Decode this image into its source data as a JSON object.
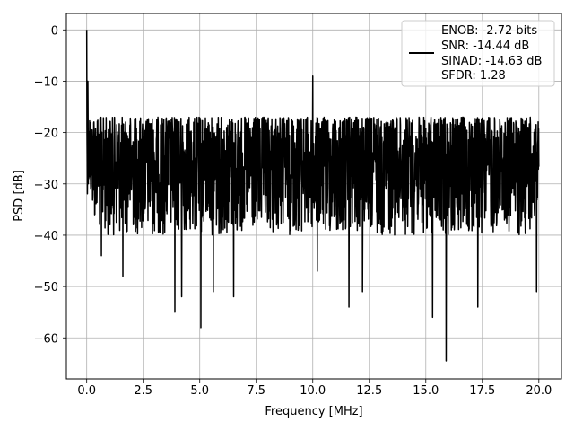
{
  "chart_data": {
    "type": "line",
    "title": "",
    "xlabel": "Frequency [MHz]",
    "ylabel": "PSD [dB]",
    "xlim": [
      -0.9,
      21.0
    ],
    "ylim": [
      -68,
      3.2
    ],
    "xticks": [
      0.0,
      2.5,
      5.0,
      7.5,
      10.0,
      12.5,
      15.0,
      17.5,
      20.0
    ],
    "xtick_labels": [
      "0.0",
      "2.5",
      "5.0",
      "7.5",
      "10.0",
      "12.5",
      "15.0",
      "17.5",
      "20.0"
    ],
    "yticks": [
      0,
      -10,
      -20,
      -30,
      -40,
      -50,
      -60
    ],
    "ytick_labels": [
      "0",
      "−10",
      "−20",
      "−30",
      "−40",
      "−50",
      "−60"
    ],
    "grid": true,
    "legend": {
      "placement": "top-right",
      "lines": [
        "ENOB: -2.72 bits",
        "SNR: -14.44 dB",
        "SINAD: -14.63 dB",
        "SFDR: 1.28"
      ]
    },
    "series": [
      {
        "color": "#000000",
        "noise_floor_db": [
          -40,
          -17
        ],
        "peaks": [
          {
            "x": 0.0,
            "y": 0.0
          },
          {
            "x": 0.05,
            "y": -10
          },
          {
            "x": 10.0,
            "y": -9
          },
          {
            "x": 0.2,
            "y": -21
          },
          {
            "x": 0.35,
            "y": -36
          },
          {
            "x": 0.65,
            "y": -44
          },
          {
            "x": 1.6,
            "y": -48
          },
          {
            "x": 3.9,
            "y": -55
          },
          {
            "x": 4.2,
            "y": -52
          },
          {
            "x": 5.05,
            "y": -58
          },
          {
            "x": 5.6,
            "y": -51
          },
          {
            "x": 6.5,
            "y": -52
          },
          {
            "x": 10.2,
            "y": -47
          },
          {
            "x": 11.6,
            "y": -54
          },
          {
            "x": 12.2,
            "y": -51
          },
          {
            "x": 15.3,
            "y": -56
          },
          {
            "x": 15.9,
            "y": -64.5
          },
          {
            "x": 17.3,
            "y": -54
          },
          {
            "x": 19.9,
            "y": -51
          }
        ]
      }
    ]
  }
}
